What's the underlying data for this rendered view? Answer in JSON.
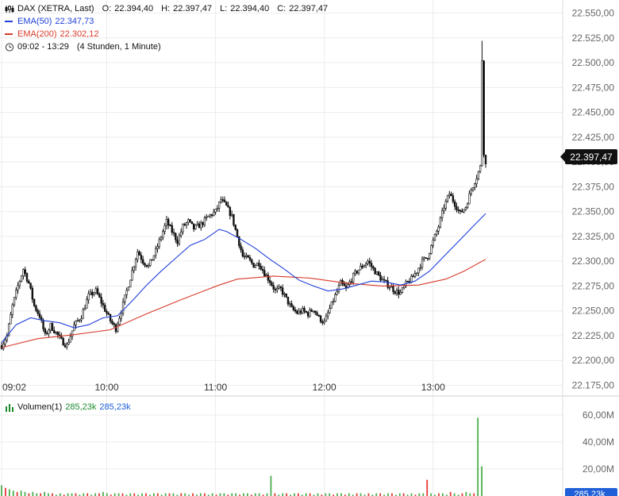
{
  "legend": {
    "instrument": "DAX (XETRA, Last)",
    "o_label": "O:",
    "o": "22.394,40",
    "h_label": "H:",
    "h": "22.397,47",
    "l_label": "L:",
    "l": "22.394,40",
    "c_label": "C:",
    "c": "22.397,47",
    "ema50_label": "EMA(50)",
    "ema50": "22.347,73",
    "ema200_label": "EMA(200)",
    "ema200": "22.302,12",
    "time_range": "09:02 - 13:29",
    "period": "(4 Stunden, 1 Minute)",
    "volume_label": "Volumen(1)",
    "volume_a": "285,23k",
    "volume_b": "285,23k"
  },
  "colors": {
    "ema50": "#1f3fd8",
    "ema200": "#d83a2a",
    "vol_up": "#4caf50",
    "vol_down": "#e53935",
    "price_tag": "#111111"
  },
  "price_tag": "22.397,47",
  "volume_tag": "285,23k",
  "chart_data": [
    {
      "type": "candlestick",
      "title": "DAX (XETRA, Last)",
      "ylim": [
        22165,
        22560
      ],
      "yticks": [
        "22.550,00",
        "22.525,00",
        "22.500,00",
        "22.475,00",
        "22.450,00",
        "22.425,00",
        "22.400,00",
        "22.375,00",
        "22.350,00",
        "22.325,00",
        "22.300,00",
        "22.275,00",
        "22.250,00",
        "22.225,00",
        "22.200,00",
        "22.175,00"
      ],
      "ytick_values": [
        22550,
        22525,
        22500,
        22475,
        22450,
        22425,
        22400,
        22375,
        22350,
        22325,
        22300,
        22275,
        22250,
        22225,
        22200,
        22175
      ],
      "xticks": [
        "09:02",
        "10:00",
        "11:00",
        "12:00",
        "13:00"
      ],
      "xtick_minutes": [
        0,
        58,
        118,
        178,
        238
      ],
      "x_range_minutes": [
        0,
        267
      ],
      "close_path": [
        [
          0,
          22215
        ],
        [
          3,
          22225
        ],
        [
          6,
          22255
        ],
        [
          9,
          22275
        ],
        [
          12,
          22292
        ],
        [
          15,
          22278
        ],
        [
          18,
          22255
        ],
        [
          21,
          22245
        ],
        [
          24,
          22225
        ],
        [
          27,
          22235
        ],
        [
          30,
          22228
        ],
        [
          33,
          22220
        ],
        [
          36,
          22215
        ],
        [
          40,
          22235
        ],
        [
          44,
          22245
        ],
        [
          48,
          22265
        ],
        [
          52,
          22270
        ],
        [
          56,
          22255
        ],
        [
          60,
          22240
        ],
        [
          63,
          22232
        ],
        [
          66,
          22250
        ],
        [
          69,
          22270
        ],
        [
          72,
          22290
        ],
        [
          75,
          22310
        ],
        [
          78,
          22300
        ],
        [
          81,
          22295
        ],
        [
          85,
          22310
        ],
        [
          88,
          22325
        ],
        [
          91,
          22340
        ],
        [
          94,
          22330
        ],
        [
          97,
          22320
        ],
        [
          100,
          22335
        ],
        [
          103,
          22340
        ],
        [
          106,
          22333
        ],
        [
          110,
          22337
        ],
        [
          114,
          22345
        ],
        [
          118,
          22350
        ],
        [
          121,
          22362
        ],
        [
          124,
          22355
        ],
        [
          127,
          22345
        ],
        [
          130,
          22325
        ],
        [
          133,
          22305
        ],
        [
          136,
          22302
        ],
        [
          139,
          22296
        ],
        [
          142,
          22298
        ],
        [
          145,
          22288
        ],
        [
          148,
          22280
        ],
        [
          151,
          22270
        ],
        [
          154,
          22272
        ],
        [
          157,
          22262
        ],
        [
          160,
          22252
        ],
        [
          163,
          22248
        ],
        [
          166,
          22250
        ],
        [
          169,
          22247
        ],
        [
          172,
          22252
        ],
        [
          175,
          22243
        ],
        [
          178,
          22238
        ],
        [
          181,
          22252
        ],
        [
          184,
          22265
        ],
        [
          187,
          22278
        ],
        [
          190,
          22272
        ],
        [
          193,
          22282
        ],
        [
          196,
          22290
        ],
        [
          199,
          22295
        ],
        [
          202,
          22300
        ],
        [
          205,
          22292
        ],
        [
          208,
          22285
        ],
        [
          211,
          22279
        ],
        [
          214,
          22275
        ],
        [
          217,
          22270
        ],
        [
          220,
          22268
        ],
        [
          223,
          22277
        ],
        [
          226,
          22282
        ],
        [
          229,
          22290
        ],
        [
          232,
          22300
        ],
        [
          235,
          22305
        ],
        [
          238,
          22320
        ],
        [
          241,
          22335
        ],
        [
          244,
          22355
        ],
        [
          247,
          22368
        ],
        [
          250,
          22358
        ],
        [
          253,
          22348
        ],
        [
          256,
          22355
        ],
        [
          259,
          22372
        ],
        [
          262,
          22385
        ],
        [
          264,
          22395
        ],
        [
          265,
          22503
        ],
        [
          266,
          22410
        ],
        [
          267,
          22397
        ]
      ],
      "ema50": [
        [
          0,
          22218
        ],
        [
          8,
          22236
        ],
        [
          16,
          22243
        ],
        [
          24,
          22240
        ],
        [
          32,
          22238
        ],
        [
          40,
          22233
        ],
        [
          48,
          22236
        ],
        [
          56,
          22243
        ],
        [
          64,
          22245
        ],
        [
          72,
          22260
        ],
        [
          80,
          22276
        ],
        [
          88,
          22290
        ],
        [
          96,
          22303
        ],
        [
          104,
          22316
        ],
        [
          112,
          22322
        ],
        [
          120,
          22332
        ],
        [
          124,
          22330
        ],
        [
          132,
          22322
        ],
        [
          140,
          22313
        ],
        [
          148,
          22302
        ],
        [
          156,
          22292
        ],
        [
          164,
          22281
        ],
        [
          172,
          22275
        ],
        [
          180,
          22270
        ],
        [
          188,
          22272
        ],
        [
          196,
          22276
        ],
        [
          204,
          22280
        ],
        [
          212,
          22279
        ],
        [
          220,
          22276
        ],
        [
          228,
          22280
        ],
        [
          236,
          22290
        ],
        [
          244,
          22305
        ],
        [
          252,
          22320
        ],
        [
          260,
          22335
        ],
        [
          267,
          22348
        ]
      ],
      "ema200": [
        [
          0,
          22213
        ],
        [
          20,
          22222
        ],
        [
          40,
          22226
        ],
        [
          60,
          22231
        ],
        [
          80,
          22247
        ],
        [
          100,
          22262
        ],
        [
          120,
          22276
        ],
        [
          130,
          22282
        ],
        [
          150,
          22285
        ],
        [
          170,
          22283
        ],
        [
          190,
          22278
        ],
        [
          210,
          22275
        ],
        [
          230,
          22276
        ],
        [
          245,
          22282
        ],
        [
          255,
          22290
        ],
        [
          267,
          22302
        ]
      ]
    },
    {
      "type": "bar",
      "title": "Volumen(1)",
      "ylim": [
        0,
        70
      ],
      "yticks": [
        "60,00M",
        "40,00M",
        "20,00M"
      ],
      "ytick_values": [
        60,
        40,
        20
      ],
      "values_m": [
        8,
        6,
        5,
        4,
        3,
        4,
        3,
        2,
        3,
        2,
        2,
        3,
        2,
        2,
        1,
        2,
        1,
        2,
        2,
        2,
        1,
        2,
        2,
        1,
        2,
        2,
        3,
        2,
        1,
        2,
        2,
        2,
        1,
        2,
        2,
        1,
        2,
        2,
        1,
        2,
        2,
        1,
        2,
        2,
        2,
        1,
        2,
        2,
        1,
        2,
        1,
        2,
        2,
        1,
        2,
        1,
        2,
        2,
        1,
        2,
        2,
        1,
        2,
        2,
        1,
        2,
        2,
        1,
        2,
        15,
        2,
        1,
        2,
        2,
        1,
        2,
        2,
        1,
        2,
        2,
        1,
        2,
        1,
        2,
        2,
        1,
        2,
        2,
        1,
        2,
        1,
        2,
        2,
        1,
        2,
        1,
        2,
        2,
        1,
        2,
        2,
        1,
        2,
        2,
        1,
        2,
        1,
        2,
        2,
        12,
        2,
        1,
        2,
        2,
        1,
        3,
        2,
        1,
        2,
        3,
        2,
        2,
        58,
        22,
        0
      ],
      "volume_colors": "alternating-up-down"
    }
  ]
}
